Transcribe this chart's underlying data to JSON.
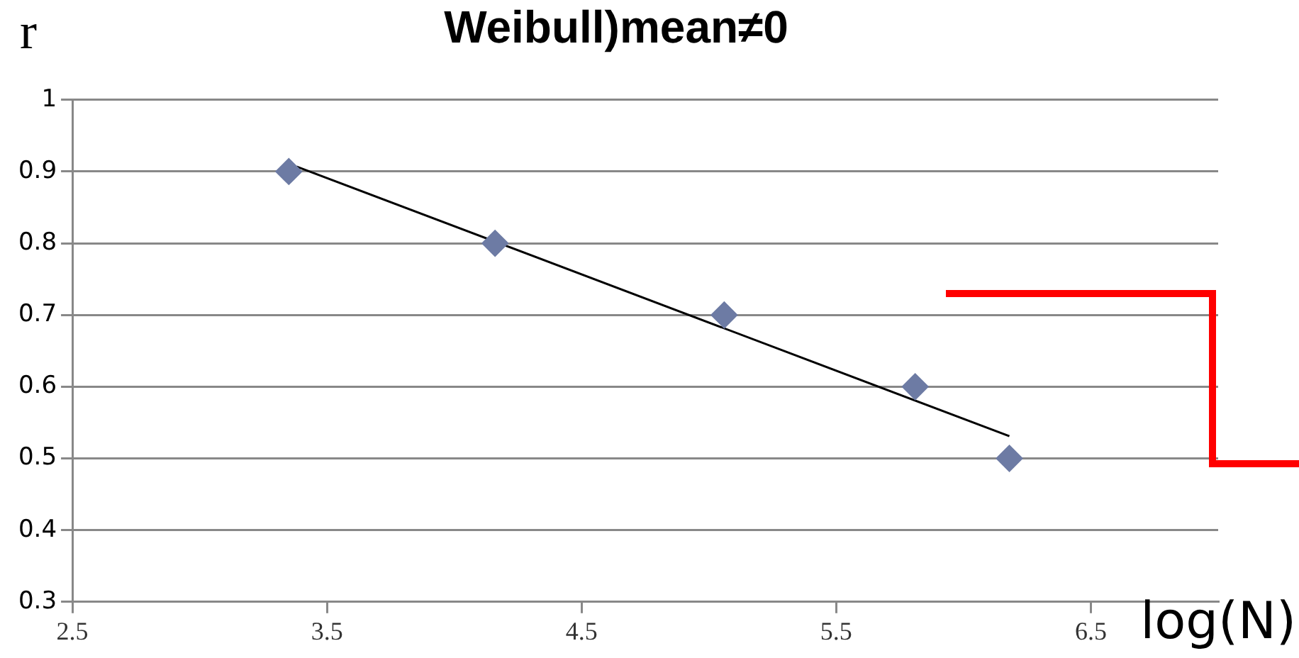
{
  "chart_data": {
    "type": "scatter",
    "title": "Weibull)mean≠0",
    "ylabel": "r",
    "xlabel": "log(N)",
    "series": [
      {
        "type": "scatter",
        "color": "#6d7ba4",
        "x": [
          3.35,
          4.16,
          5.06,
          5.81,
          6.18
        ],
        "values": [
          0.9,
          0.8,
          0.7,
          0.6,
          0.5
        ],
        "marker": "diamond"
      },
      {
        "type": "line",
        "color": "#000000",
        "x": [
          3.38,
          6.18
        ],
        "values": [
          0.907,
          0.531
        ],
        "marker": "none"
      }
    ],
    "xlim": [
      2.5,
      7.0
    ],
    "xticks": [
      2.5,
      3.5,
      4.5,
      5.5,
      6.5
    ],
    "ylim": [
      0.3,
      1.0
    ],
    "yticks": [
      0.3,
      0.4,
      0.5,
      0.6,
      0.7,
      0.8,
      0.9,
      {
        "value": 1,
        "label": "1"
      }
    ],
    "grid": "y",
    "legend": false
  }
}
